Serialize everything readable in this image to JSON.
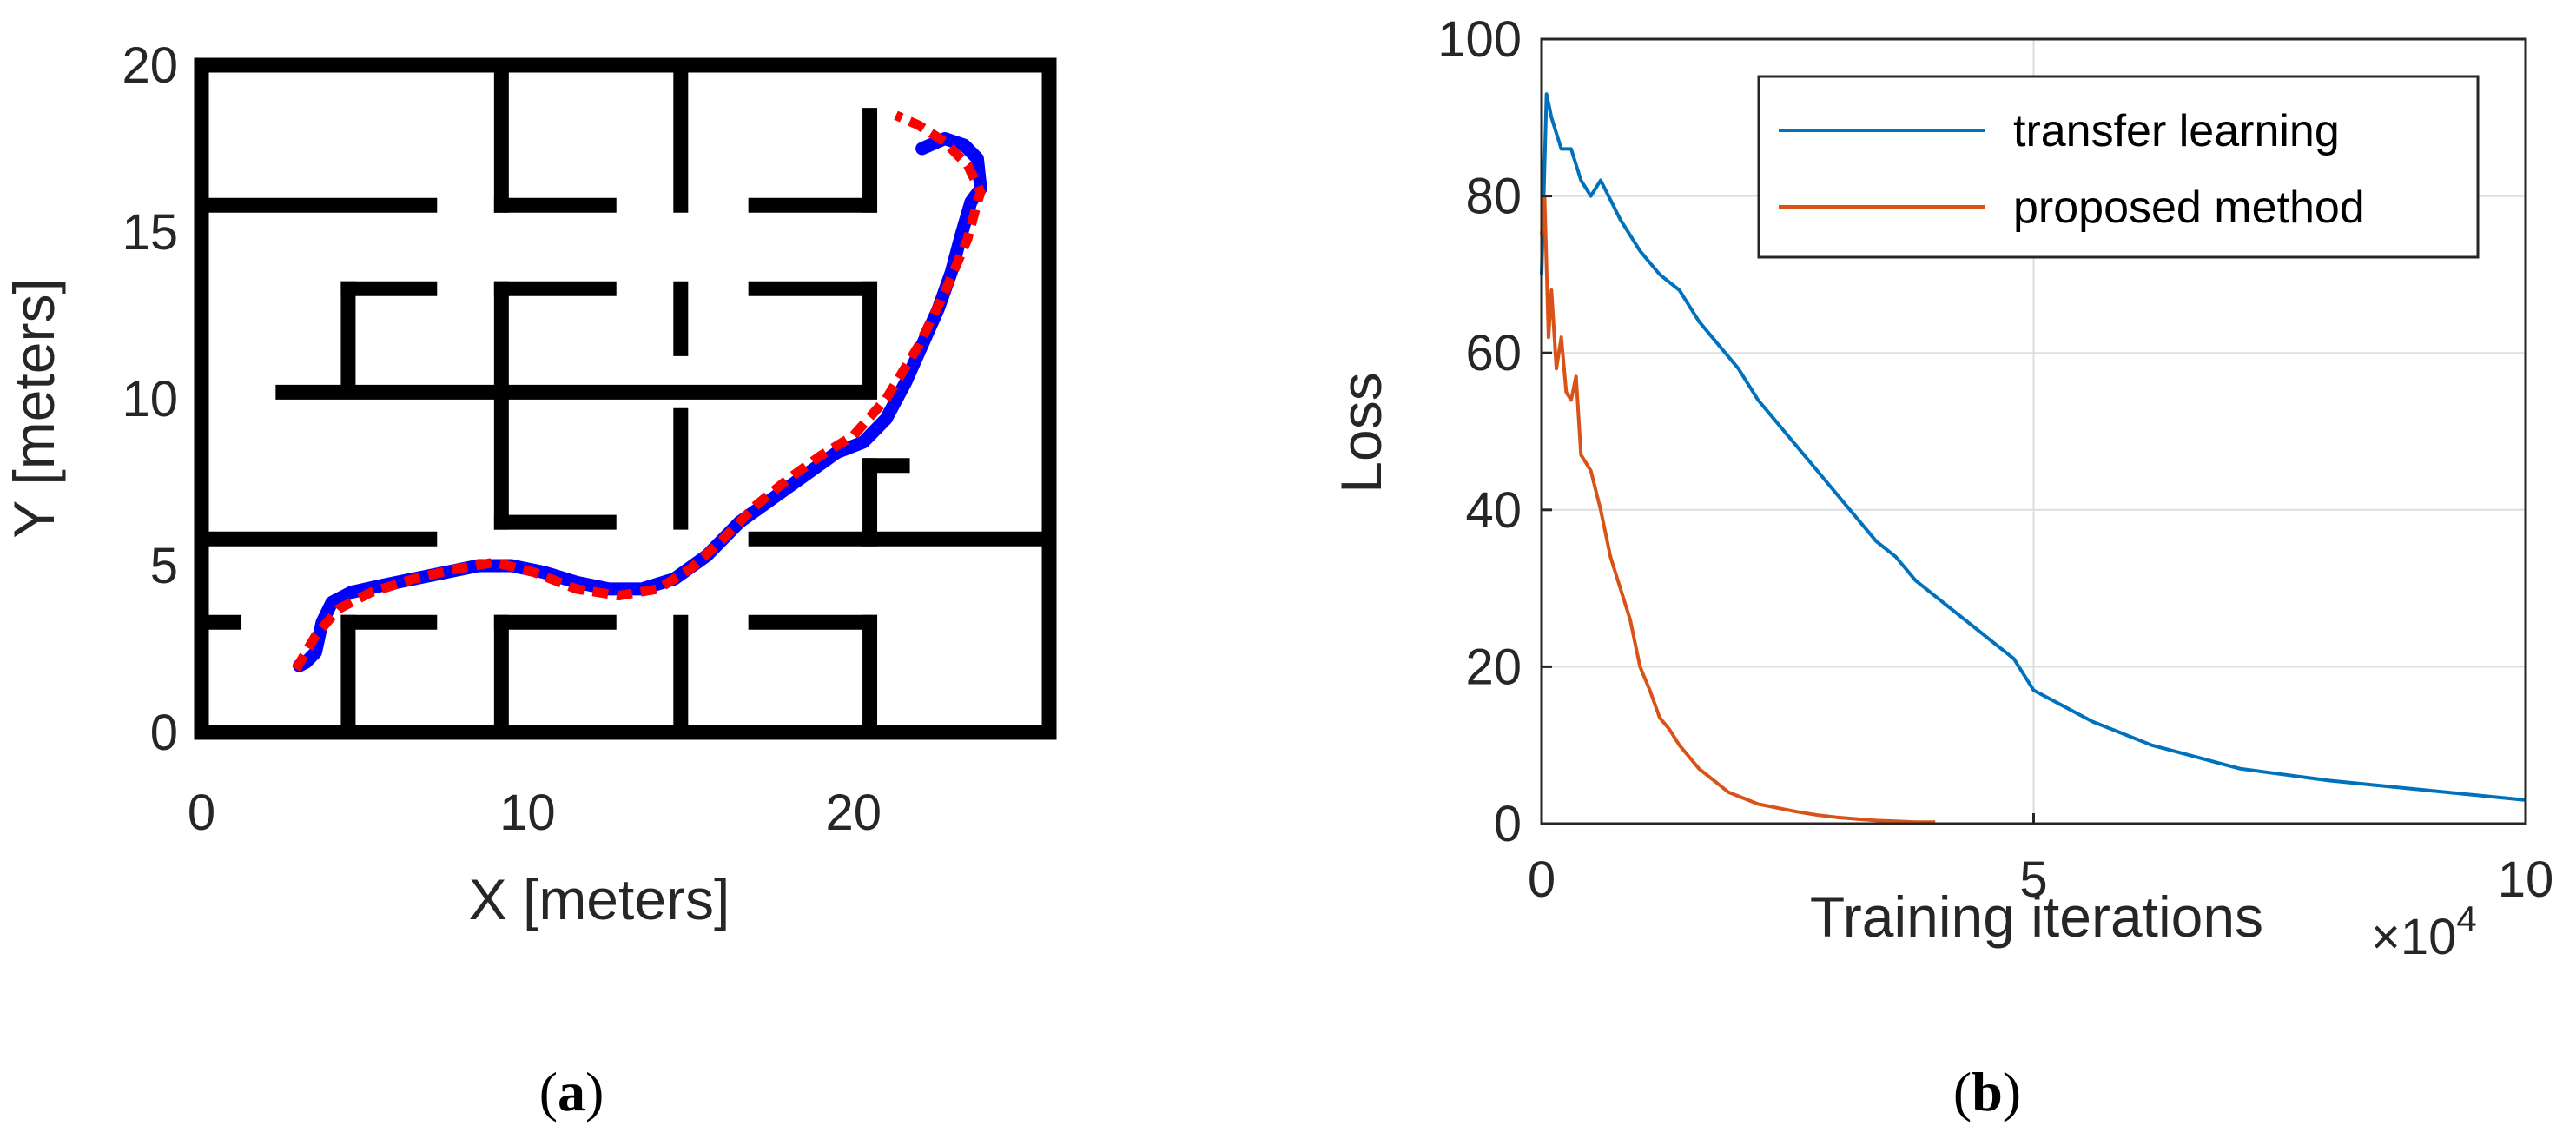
{
  "panel_a": {
    "caption_open": "(",
    "caption_letter": "a",
    "caption_close": ")"
  },
  "panel_b": {
    "caption_open": "(",
    "caption_letter": "b",
    "caption_close": ")",
    "x_multiplier_base": "×10",
    "x_multiplier_exp": "4"
  },
  "chart_data": [
    {
      "type": "line",
      "xlabel": "X [meters]",
      "ylabel": "Y [meters]",
      "xlim": [
        0,
        26
      ],
      "ylim": [
        0,
        20
      ],
      "x_ticks": [
        "0",
        "10",
        "20"
      ],
      "y_ticks": [
        "0",
        "5",
        "10",
        "15",
        "20"
      ],
      "grid": false,
      "colors": {
        "walls": "#000000",
        "actual_path": "#0000ff",
        "reference_path": "#ff0000"
      },
      "walls": [
        [
          [
            0,
            0
          ],
          [
            26,
            0
          ]
        ],
        [
          [
            26,
            0
          ],
          [
            26,
            20
          ]
        ],
        [
          [
            26,
            20
          ],
          [
            0,
            20
          ]
        ],
        [
          [
            0,
            20
          ],
          [
            0,
            0
          ]
        ],
        [
          [
            0,
            15.8
          ],
          [
            7,
            15.8
          ]
        ],
        [
          [
            9.2,
            15.8
          ],
          [
            12.5,
            15.8
          ]
        ],
        [
          [
            17,
            15.8
          ],
          [
            20.5,
            15.8
          ]
        ],
        [
          [
            20.5,
            15.8
          ],
          [
            20.5,
            18.5
          ]
        ],
        [
          [
            4.5,
            13.3
          ],
          [
            7,
            13.3
          ]
        ],
        [
          [
            4.5,
            13.3
          ],
          [
            4.5,
            10.5
          ]
        ],
        [
          [
            9.2,
            13.3
          ],
          [
            12.5,
            13.3
          ]
        ],
        [
          [
            17,
            13.3
          ],
          [
            20.5,
            13.3
          ]
        ],
        [
          [
            20.5,
            13.3
          ],
          [
            20.5,
            10.5
          ]
        ],
        [
          [
            2.5,
            10.2
          ],
          [
            20.5,
            10.2
          ]
        ],
        [
          [
            9.2,
            20
          ],
          [
            9.2,
            15.8
          ]
        ],
        [
          [
            14.7,
            20
          ],
          [
            14.7,
            15.8
          ]
        ],
        [
          [
            9.2,
            13.3
          ],
          [
            9.2,
            6.3
          ]
        ],
        [
          [
            14.7,
            13.3
          ],
          [
            14.7,
            11.5
          ]
        ],
        [
          [
            14.7,
            9.5
          ],
          [
            14.7,
            6.3
          ]
        ],
        [
          [
            9.2,
            6.3
          ],
          [
            12.5,
            6.3
          ]
        ],
        [
          [
            0,
            5.8
          ],
          [
            7,
            5.8
          ]
        ],
        [
          [
            0,
            3.3
          ],
          [
            1,
            3.3
          ]
        ],
        [
          [
            4.5,
            3.3
          ],
          [
            7,
            3.3
          ]
        ],
        [
          [
            4.5,
            3.3
          ],
          [
            4.5,
            0
          ]
        ],
        [
          [
            9.2,
            3.3
          ],
          [
            12.5,
            3.3
          ]
        ],
        [
          [
            9.2,
            3.3
          ],
          [
            9.2,
            0
          ]
        ],
        [
          [
            14.7,
            3.3
          ],
          [
            14.7,
            0
          ]
        ],
        [
          [
            17,
            3.3
          ],
          [
            20.5,
            3.3
          ]
        ],
        [
          [
            20.5,
            3.3
          ],
          [
            20.5,
            0
          ]
        ],
        [
          [
            17,
            5.8
          ],
          [
            26,
            5.8
          ]
        ],
        [
          [
            20.5,
            8.0
          ],
          [
            20.5,
            5.8
          ]
        ],
        [
          [
            20.5,
            8.0
          ],
          [
            21.5,
            8.0
          ]
        ]
      ],
      "series": [
        {
          "x": [
            3.0,
            3.2,
            3.5,
            3.7,
            4.0,
            4.6,
            5.5,
            6.5,
            7.5,
            8.5,
            9.5,
            10.5,
            11.5,
            12.5,
            13.5,
            14.5,
            15.5,
            16.5,
            17.5,
            18.5,
            19.5,
            20.3,
            21.0,
            21.6,
            22.1,
            22.6,
            23.0,
            23.3,
            23.6,
            23.9,
            23.8,
            23.4,
            22.8,
            22.1
          ],
          "y": [
            2.0,
            2.1,
            2.4,
            3.3,
            3.9,
            4.2,
            4.4,
            4.6,
            4.8,
            5.0,
            5.0,
            4.8,
            4.5,
            4.3,
            4.3,
            4.6,
            5.3,
            6.3,
            7.0,
            7.7,
            8.4,
            8.7,
            9.4,
            10.5,
            11.6,
            12.7,
            13.8,
            14.9,
            15.9,
            16.3,
            17.2,
            17.6,
            17.8,
            17.5
          ]
        },
        {
          "x": [
            2.9,
            3.5,
            4.2,
            5.2,
            6.5,
            7.8,
            9.0,
            10.2,
            11.5,
            12.8,
            14.0,
            15.0,
            16.0,
            17.0,
            18.0,
            19.0,
            20.0,
            21.0,
            22.0,
            22.8,
            23.5,
            23.8,
            23.9,
            23.5,
            22.8,
            22.0,
            21.3
          ],
          "y": [
            1.9,
            2.9,
            3.7,
            4.2,
            4.6,
            4.9,
            5.1,
            4.8,
            4.3,
            4.1,
            4.3,
            4.9,
            5.8,
            6.8,
            7.6,
            8.3,
            8.9,
            10.0,
            11.6,
            13.2,
            14.8,
            15.9,
            16.2,
            17.0,
            17.7,
            18.2,
            18.5
          ]
        }
      ]
    },
    {
      "type": "line",
      "xlabel": "Training iterations",
      "ylabel": "Loss",
      "xlim": [
        0,
        100000
      ],
      "ylim": [
        0,
        100
      ],
      "x_ticks": [
        "0",
        "5",
        "10"
      ],
      "y_ticks": [
        "0",
        "20",
        "40",
        "60",
        "80",
        "100"
      ],
      "grid": true,
      "legend_placement": "top-right",
      "series": [
        {
          "name": "transfer learning",
          "color": "#0072bd",
          "x": [
            0,
            500,
            1000,
            2000,
            3000,
            4000,
            5000,
            6000,
            8000,
            10000,
            12000,
            14000,
            16000,
            18000,
            20000,
            22000,
            24000,
            26000,
            28000,
            30000,
            32000,
            34000,
            36000,
            38000,
            40000,
            42000,
            44000,
            46000,
            48000,
            50000,
            53000,
            56000,
            59000,
            62000,
            65000,
            68000,
            71000,
            74000,
            77000,
            80000,
            84000,
            88000,
            92000,
            96000,
            100000
          ],
          "y": [
            70,
            93,
            90,
            86,
            86,
            82,
            80,
            82,
            77,
            73,
            70,
            68,
            64,
            61,
            58,
            54,
            51,
            48,
            45,
            42,
            39,
            36,
            34,
            31,
            29,
            27,
            25,
            23,
            21,
            17,
            15,
            13,
            11.5,
            10,
            9,
            8,
            7,
            6.5,
            6,
            5.5,
            5,
            4.5,
            4,
            3.5,
            3
          ]
        },
        {
          "name": "proposed method",
          "color": "#d95319",
          "x": [
            0,
            300,
            700,
            1000,
            1500,
            2000,
            2500,
            3000,
            3500,
            4000,
            5000,
            6000,
            7000,
            8000,
            9000,
            10000,
            11000,
            12000,
            13000,
            14000,
            15000,
            16000,
            17000,
            18000,
            19000,
            20000,
            21000,
            22000,
            24000,
            26000,
            28000,
            30000,
            32000,
            34000,
            36000,
            38000,
            40000
          ],
          "y": [
            75,
            80,
            62,
            68,
            58,
            62,
            55,
            54,
            57,
            47,
            45,
            40,
            34,
            30,
            26,
            20,
            17,
            13.5,
            12,
            10,
            8.5,
            7,
            6,
            5,
            4,
            3.5,
            3,
            2.5,
            2,
            1.5,
            1.1,
            0.8,
            0.6,
            0.4,
            0.3,
            0.2,
            0.2
          ]
        }
      ]
    }
  ]
}
